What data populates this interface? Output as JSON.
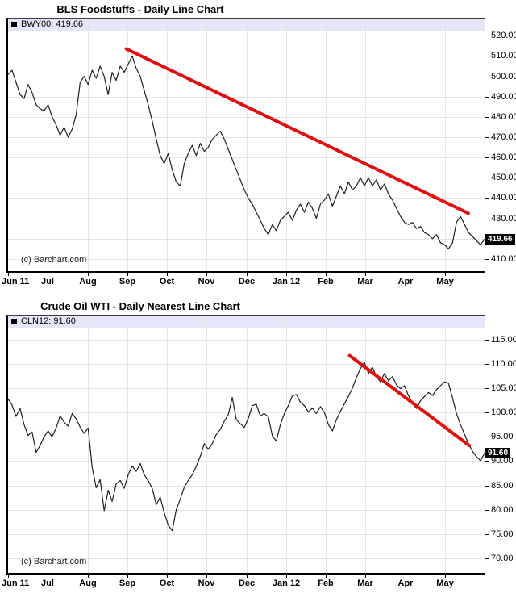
{
  "colors": {
    "background": "#FFFFFF",
    "grid": "#E4E4E4",
    "legend_background": "#E6E6FA",
    "legend_separator": "#C9C9DE",
    "series": "#1F1F1F",
    "trend": "#E00E0E",
    "axis_text": "#000000",
    "price_tag_bg": "#000000",
    "price_tag_fg": "#FFFFFF"
  },
  "chart_data": [
    {
      "type": "line",
      "title": "BLS Foodstuffs - Daily Line Chart",
      "legend_label": "BWY00: 419.66",
      "symbol": "BWY00",
      "last_value": 419.66,
      "last_price_label": "419.66",
      "copyright": "(c) Barchart.com",
      "grid": true,
      "legend_position": "top-left",
      "x_tick_labels": [
        "Jun 11",
        "Jul",
        "Aug",
        "Sep",
        "Oct",
        "Nov",
        "Dec",
        "Jan 12",
        "Feb",
        "Mar",
        "Apr",
        "May"
      ],
      "y_axis": {
        "range": [
          404,
          522.5
        ],
        "ticks": [
          {
            "v": 520,
            "label": "520.00"
          },
          {
            "v": 510,
            "label": "510.00"
          },
          {
            "v": 500,
            "label": "500.00"
          },
          {
            "v": 490,
            "label": "490.00"
          },
          {
            "v": 480,
            "label": "480.00"
          },
          {
            "v": 470,
            "label": "470.00"
          },
          {
            "v": 460,
            "label": "460.00"
          },
          {
            "v": 450,
            "label": "450.00"
          },
          {
            "v": 440,
            "label": "440.00"
          },
          {
            "v": 430,
            "label": "430.00"
          },
          {
            "v": 420,
            "label": ""
          },
          {
            "v": 410,
            "label": "410.00"
          }
        ]
      },
      "series": [
        {
          "name": "BWY00",
          "values": [
            501,
            503,
            497,
            491,
            489,
            496,
            492,
            486,
            484,
            483,
            486,
            480,
            476,
            471,
            475,
            470,
            474,
            481,
            497,
            500,
            496,
            503,
            499,
            505,
            500,
            491,
            502,
            498,
            505,
            502,
            506,
            510,
            504,
            500,
            493,
            486,
            478,
            469,
            461,
            457,
            462,
            454,
            448,
            446,
            457,
            462,
            466,
            461,
            467,
            463,
            465,
            469,
            471,
            473,
            469,
            464,
            459,
            454,
            449,
            444,
            440,
            437,
            433,
            429,
            425,
            422,
            427,
            424,
            429,
            431,
            433,
            429,
            434,
            437,
            433,
            438,
            435,
            430,
            437,
            439,
            442,
            436,
            441,
            446,
            442,
            448,
            444,
            446,
            450,
            446,
            450,
            446,
            449,
            444,
            447,
            442,
            439,
            435,
            431,
            428,
            427,
            428,
            425,
            426,
            423,
            422,
            420,
            422,
            418,
            417,
            415,
            418,
            428,
            431,
            427,
            423,
            421,
            419,
            417,
            419.66
          ]
        }
      ],
      "trendline": {
        "x1_frac": 0.248,
        "value1": 513.5,
        "x2_frac": 0.966,
        "value2": 432.5
      }
    },
    {
      "type": "line",
      "title": "Crude Oil WTI - Daily Nearest Line Chart",
      "legend_label": "CLN12: 91.60",
      "symbol": "CLN12",
      "last_value": 91.6,
      "last_price_label": "91.60",
      "copyright": "(c) Barchart.com",
      "grid": true,
      "legend_position": "top-left",
      "x_tick_labels": [
        "Jun 11",
        "Jul",
        "Aug",
        "Sep",
        "Oct",
        "Nov",
        "Dec",
        "Jan 12",
        "Feb",
        "Mar",
        "Apr",
        "May"
      ],
      "y_axis": {
        "range": [
          67.0,
          117.45
        ],
        "ticks": [
          {
            "v": 115,
            "label": "115.00"
          },
          {
            "v": 110,
            "label": "110.00"
          },
          {
            "v": 105,
            "label": "105.00"
          },
          {
            "v": 100,
            "label": "100.00"
          },
          {
            "v": 95,
            "label": "95.00"
          },
          {
            "v": 90,
            "label": "90.00"
          },
          {
            "v": 85,
            "label": "85.00"
          },
          {
            "v": 80,
            "label": "80.00"
          },
          {
            "v": 75,
            "label": "75.00"
          },
          {
            "v": 70,
            "label": "70.00"
          }
        ]
      },
      "series": [
        {
          "name": "CLN12",
          "values": [
            102.8,
            101.5,
            99.2,
            100.8,
            97.5,
            95.3,
            96.0,
            91.8,
            93.2,
            95.0,
            96.2,
            95.0,
            96.8,
            99.3,
            98.0,
            97.2,
            99.8,
            98.7,
            97.0,
            95.7,
            96.8,
            88.7,
            84.5,
            86.2,
            79.8,
            84.0,
            81.7,
            85.3,
            86.0,
            84.4,
            87.2,
            89.0,
            87.9,
            89.5,
            87.2,
            86.0,
            84.4,
            81.0,
            82.6,
            79.4,
            76.8,
            75.7,
            80.0,
            82.2,
            84.6,
            86.0,
            87.2,
            88.9,
            91.0,
            93.6,
            92.4,
            93.6,
            95.5,
            96.5,
            98.2,
            99.6,
            103.1,
            98.5,
            97.7,
            96.9,
            98.8,
            101.4,
            101.7,
            99.3,
            99.8,
            99.1,
            95.2,
            94.1,
            97.5,
            99.8,
            101.4,
            103.4,
            103.7,
            102.1,
            101.4,
            100.1,
            100.9,
            99.8,
            101.2,
            100.0,
            97.5,
            96.2,
            98.5,
            100.2,
            101.8,
            103.3,
            105.0,
            107.2,
            109.0,
            110.3,
            108.0,
            109.3,
            107.4,
            106.3,
            108.0,
            106.5,
            107.4,
            105.7,
            104.9,
            105.5,
            103.5,
            101.9,
            100.8,
            102.4,
            103.3,
            104.1,
            103.5,
            104.7,
            105.5,
            106.3,
            106.0,
            103.0,
            99.8,
            97.5,
            95.5,
            93.6,
            92.0,
            90.9,
            90.1,
            91.6
          ]
        }
      ],
      "trendline": {
        "x1_frac": 0.7167,
        "value1": 111.7,
        "x2_frac": 0.968,
        "value2": 93.2
      }
    }
  ]
}
